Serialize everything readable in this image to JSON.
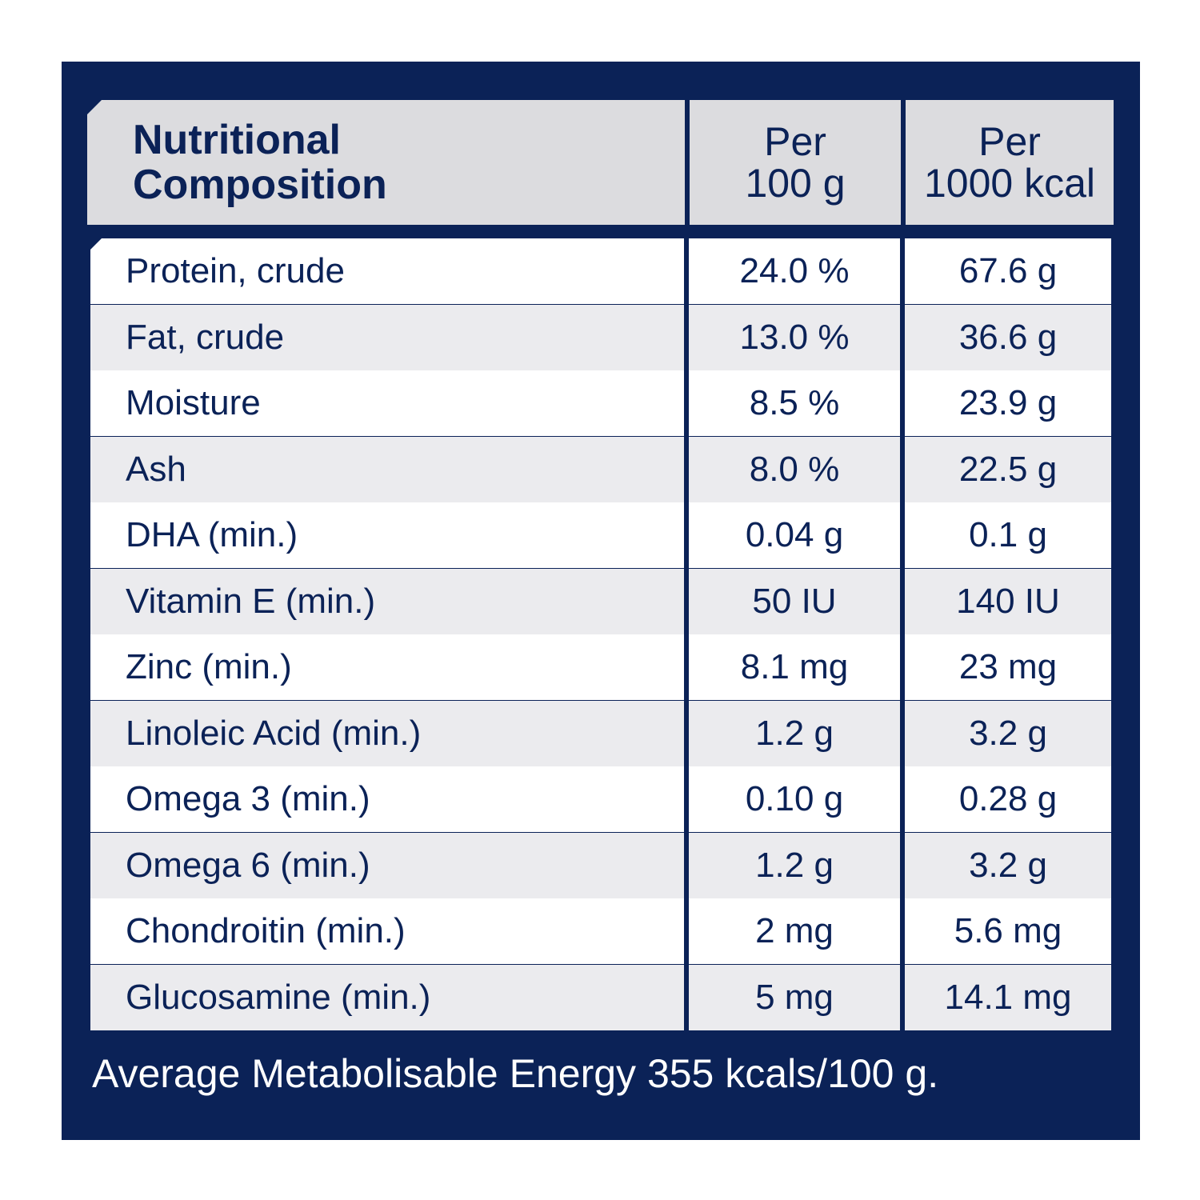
{
  "header": {
    "col1_line1": "Nutritional",
    "col1_line2": "Composition",
    "col2_line1": "Per",
    "col2_line2": "100 g",
    "col3_line1": "Per",
    "col3_line2": "1000 kcal"
  },
  "rows": [
    {
      "label": "Protein, crude",
      "per100g": "24.0 %",
      "per1000kcal": "67.6 g"
    },
    {
      "label": "Fat, crude",
      "per100g": "13.0 %",
      "per1000kcal": "36.6 g"
    },
    {
      "label": "Moisture",
      "per100g": "8.5 %",
      "per1000kcal": "23.9 g"
    },
    {
      "label": "Ash",
      "per100g": "8.0 %",
      "per1000kcal": "22.5 g"
    },
    {
      "label": "DHA (min.)",
      "per100g": "0.04 g",
      "per1000kcal": "0.1 g"
    },
    {
      "label": "Vitamin E (min.)",
      "per100g": "50 IU",
      "per1000kcal": "140 IU"
    },
    {
      "label": "Zinc (min.)",
      "per100g": "8.1 mg",
      "per1000kcal": "23 mg"
    },
    {
      "label": "Linoleic Acid (min.)",
      "per100g": "1.2 g",
      "per1000kcal": "3.2 g"
    },
    {
      "label": "Omega 3 (min.)",
      "per100g": "0.10 g",
      "per1000kcal": "0.28 g"
    },
    {
      "label": "Omega 6 (min.)",
      "per100g": "1.2 g",
      "per1000kcal": "3.2 g"
    },
    {
      "label": "Chondroitin (min.)",
      "per100g": "2 mg",
      "per1000kcal": "5.6 mg"
    },
    {
      "label": "Glucosamine (min.)",
      "per100g": "5 mg",
      "per1000kcal": "14.1 mg"
    }
  ],
  "footer": "Average Metabolisable Energy 355 kcals/100 g.",
  "colors": {
    "navy": "#0b2257",
    "header_grey": "#dcdcdf",
    "row_grey": "#ebebee",
    "row_white": "#ffffff"
  }
}
